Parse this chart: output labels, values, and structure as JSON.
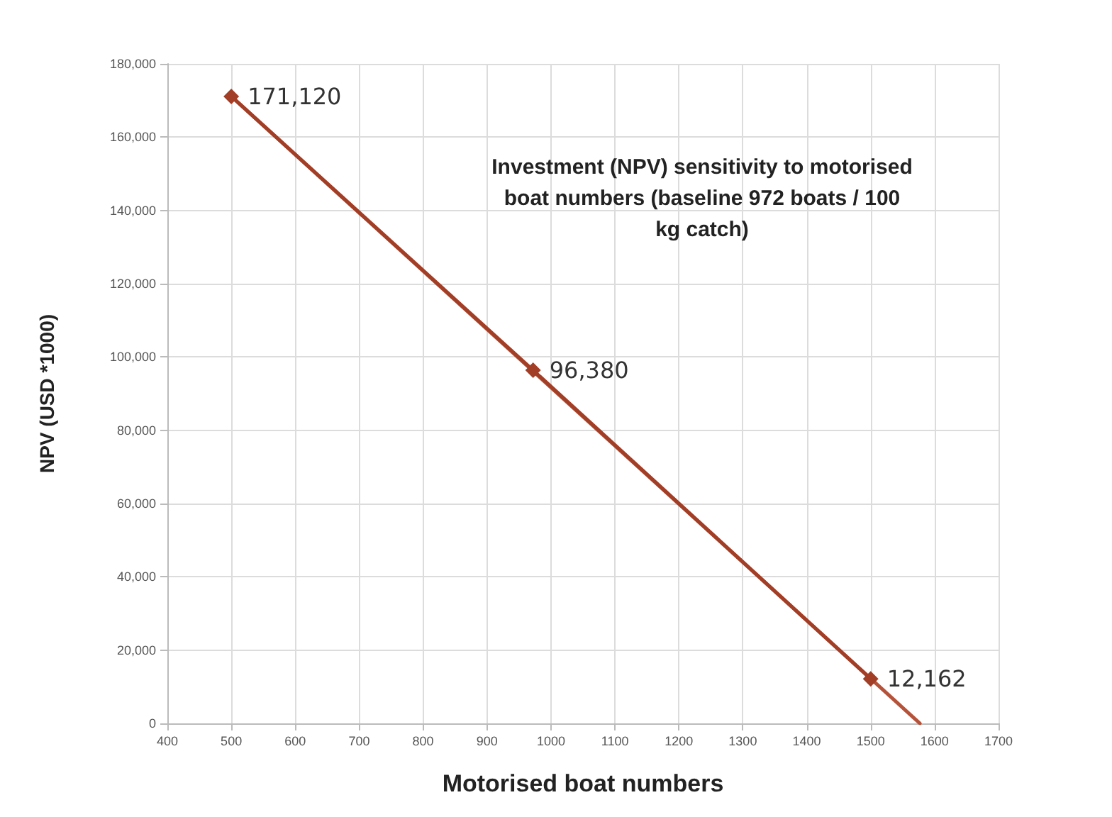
{
  "chart_data": {
    "type": "line",
    "title": "Investment (NPV) sensitivity to motorised boat numbers (baseline 972 boats / 100 kg catch)",
    "xlabel": "Motorised boat numbers",
    "ylabel": "NPV (USD *1000)",
    "series": [
      {
        "color": "#a23d26",
        "x": [
          500,
          972,
          1500
        ],
        "values": [
          171120,
          96380,
          12162
        ],
        "marker": "diamond",
        "line_style": "solid",
        "value_labels": [
          "171,120",
          "96,380",
          "12,162"
        ]
      },
      {
        "color": "#b5533a",
        "x": [
          500,
          1577
        ],
        "values": [
          171120,
          0
        ],
        "marker": "none",
        "line_style": "solid"
      }
    ],
    "xlim": [
      400,
      1700
    ],
    "xticks": [
      400,
      500,
      600,
      700,
      800,
      900,
      1000,
      1100,
      1200,
      1300,
      1400,
      1500,
      1600,
      1700
    ],
    "ylim": [
      0,
      180000
    ],
    "yticks": [
      0,
      {
        "value": 20000,
        "label": "20,000"
      },
      {
        "value": 40000,
        "label": "40,000"
      },
      {
        "value": 60000,
        "label": "60,000"
      },
      {
        "value": 80000,
        "label": "80,000"
      },
      {
        "value": 100000,
        "label": "100,000"
      },
      {
        "value": 120000,
        "label": "120,000"
      },
      {
        "value": 140000,
        "label": "140,000"
      },
      {
        "value": 160000,
        "label": "160,000"
      },
      {
        "value": 180000,
        "label": "180,000"
      }
    ],
    "grid": true
  }
}
